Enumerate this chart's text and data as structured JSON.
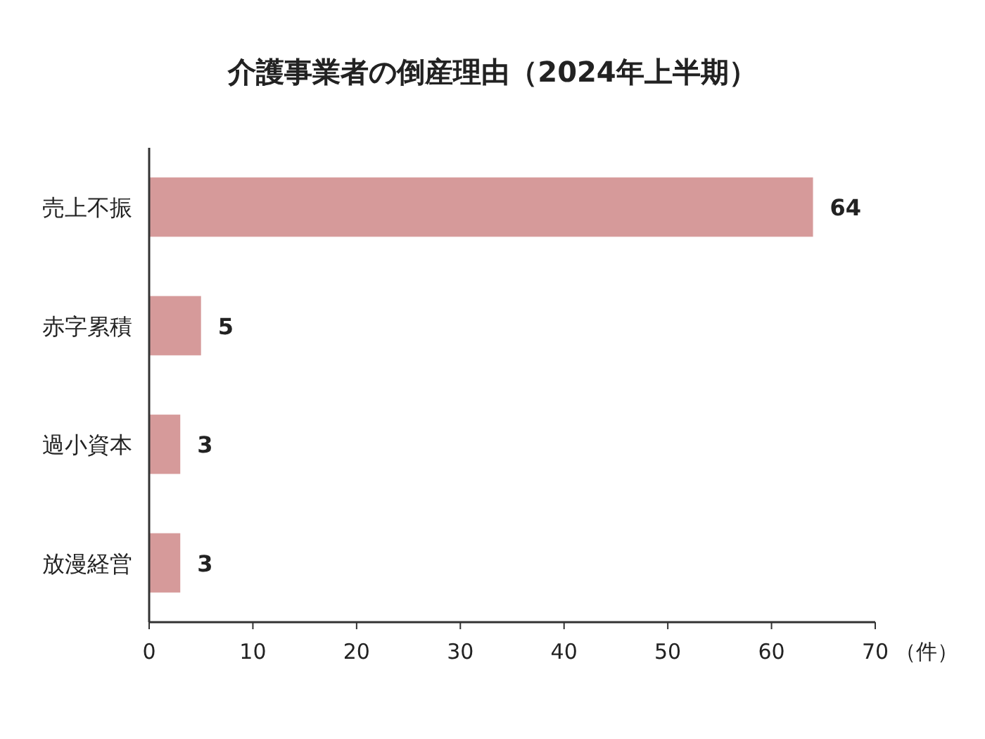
{
  "chart_data": {
    "type": "bar",
    "orientation": "horizontal",
    "title": "介護事業者の倒産理由（2024年上半期）",
    "xlabel": "（件）",
    "categories": [
      "売上不振",
      "赤字累積",
      "過小資本",
      "放漫経営"
    ],
    "values": [
      64,
      5,
      3,
      3
    ],
    "color": "#d69a9a",
    "xlim": [
      0,
      70
    ],
    "xticks": [
      0,
      10,
      20,
      30,
      40,
      50,
      60,
      70
    ],
    "data_labels": true
  }
}
